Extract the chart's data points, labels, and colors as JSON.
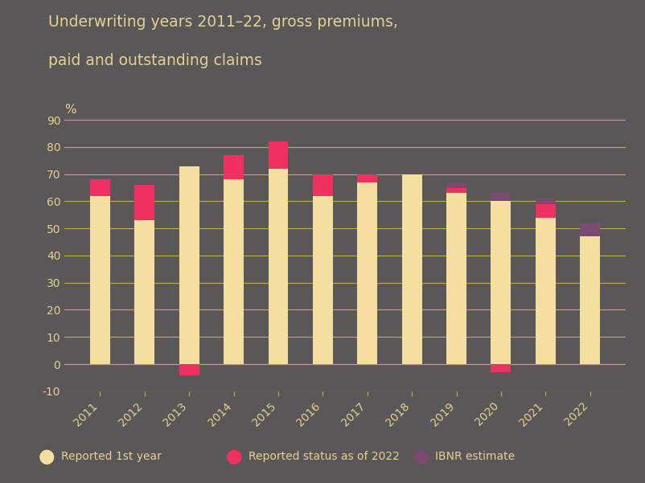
{
  "years": [
    "2011",
    "2012",
    "2013",
    "2014",
    "2015",
    "2016",
    "2017",
    "2018",
    "2019",
    "2020",
    "2021",
    "2022"
  ],
  "reported_1st_year": [
    62,
    53,
    73,
    68,
    72,
    62,
    67,
    70,
    63,
    60,
    54,
    47
  ],
  "reported_status_2022": [
    6,
    13,
    -4,
    9,
    10,
    8,
    3,
    0,
    2,
    -3,
    5,
    0
  ],
  "ibnr_estimate": [
    0,
    0,
    0,
    0,
    0,
    0,
    0,
    0,
    2,
    3,
    2,
    5
  ],
  "color_1st_year": "#F5DFA0",
  "color_reported_2022": "#F03060",
  "color_ibnr": "#7A4A70",
  "background_color": "#595757",
  "grid_color": "#C8A84B",
  "text_color": "#E8D090",
  "title_line1": "Underwriting years 2011–22, gross premiums,",
  "title_line2": "paid and outstanding claims",
  "ylabel": "%",
  "ylim_min": -10,
  "ylim_max": 95,
  "yticks": [
    -10,
    0,
    10,
    20,
    30,
    40,
    50,
    60,
    70,
    80,
    90
  ],
  "legend_labels": [
    "Reported 1st year",
    "Reported status as of 2022",
    "IBNR estimate"
  ]
}
